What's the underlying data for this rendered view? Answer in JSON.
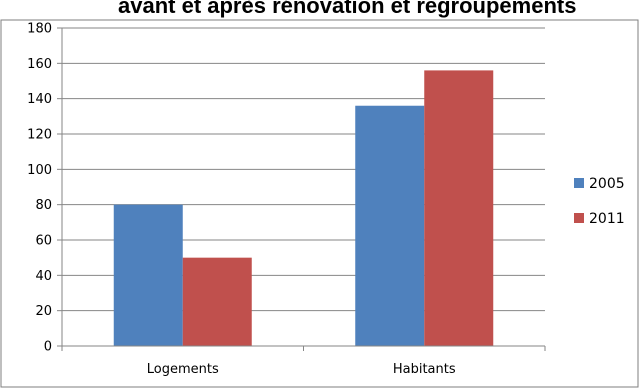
{
  "chart_data": {
    "type": "bar",
    "title": "avant et après rénovation et regroupements",
    "categories": [
      "Logements",
      "Habitants"
    ],
    "series": [
      {
        "name": "2005",
        "values": [
          80,
          136
        ],
        "color": "#4F81BD"
      },
      {
        "name": "2011",
        "values": [
          50,
          156
        ],
        "color": "#C0504D"
      }
    ],
    "xlabel": "",
    "ylabel": "",
    "ylim": [
      0,
      180
    ],
    "yticks": [
      0,
      20,
      40,
      60,
      80,
      100,
      120,
      140,
      160,
      180
    ],
    "grid": true,
    "legend": "right"
  },
  "colors": {
    "grid": "#868686",
    "axis": "#868686",
    "border": "#7f7f7f"
  }
}
